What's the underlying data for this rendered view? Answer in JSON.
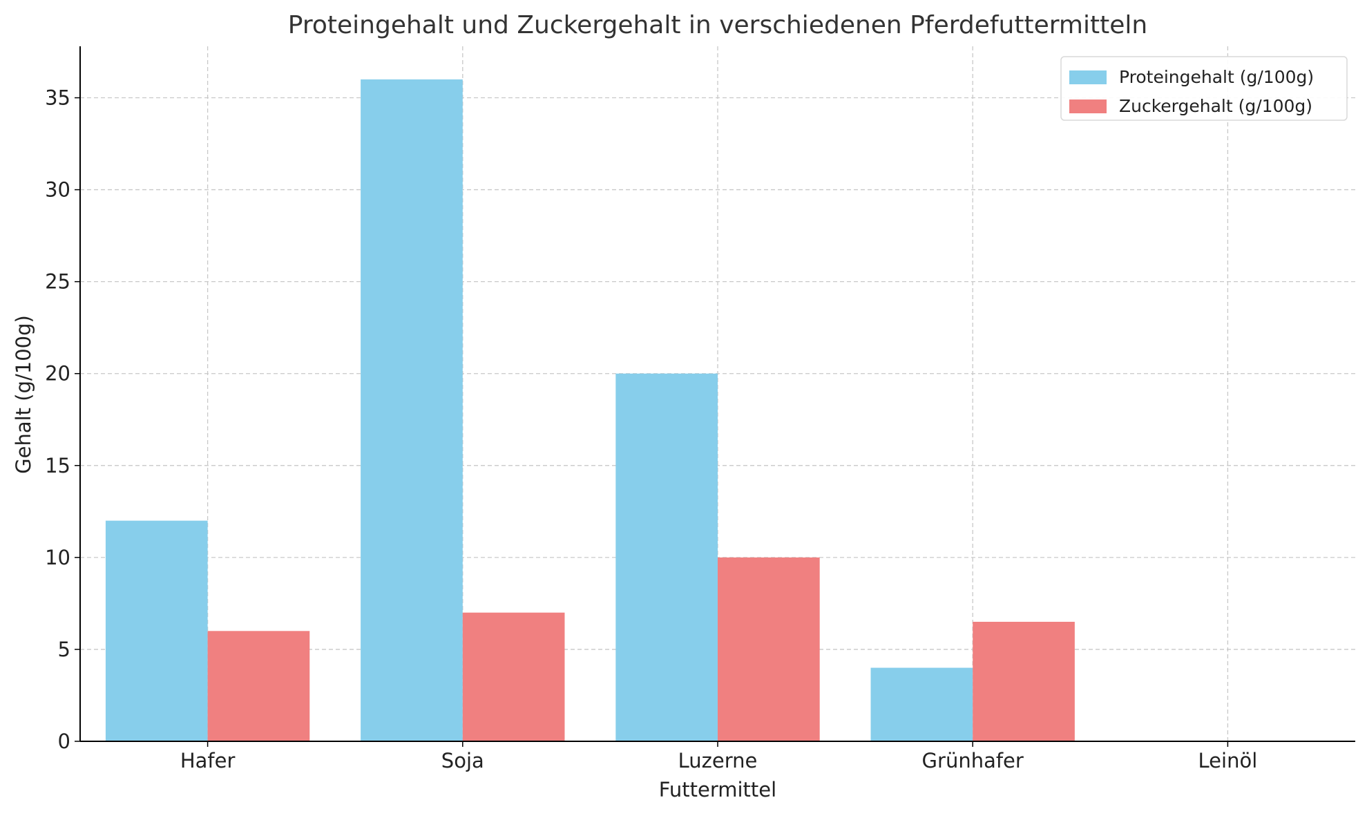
{
  "chart_data": {
    "type": "bar",
    "title": "Proteingehalt und Zuckergehalt in verschiedenen Pferdefuttermitteln",
    "xlabel": "Futtermittel",
    "ylabel": "Gehalt (g/100g)",
    "categories": [
      "Hafer",
      "Soja",
      "Luzerne",
      "Grünhafer",
      "Leinöl"
    ],
    "series": [
      {
        "name": "Proteingehalt (g/100g)",
        "values": [
          12,
          36,
          20,
          4,
          0
        ],
        "color": "#87CEEB"
      },
      {
        "name": "Zuckergehalt (g/100g)",
        "values": [
          6,
          7,
          10,
          6.5,
          0
        ],
        "color": "#F08080"
      }
    ],
    "ylim": [
      0,
      37.8
    ],
    "yticks": [
      0,
      5,
      10,
      15,
      20,
      25,
      30,
      35
    ],
    "grid": true,
    "legend_position": "top-right"
  }
}
